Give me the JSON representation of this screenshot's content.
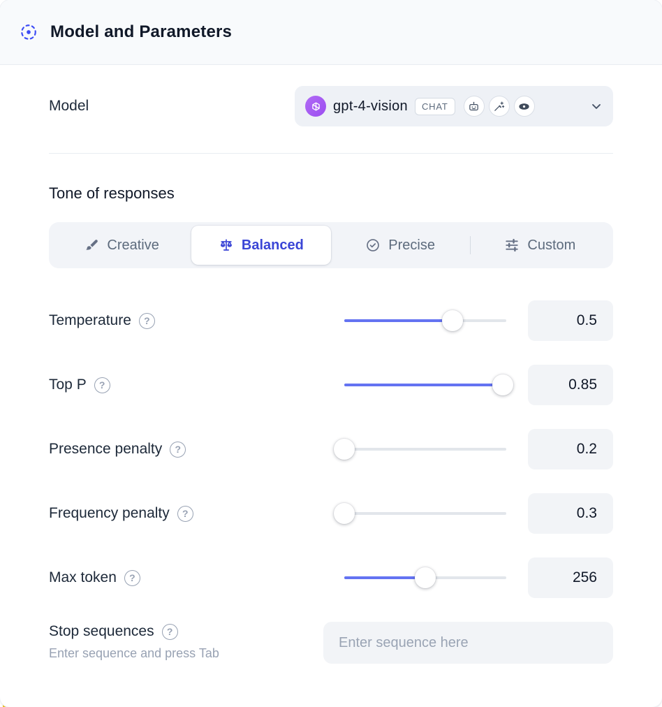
{
  "header": {
    "title": "Model and Parameters"
  },
  "model": {
    "label": "Model",
    "selected": "gpt-4-vision",
    "badge": "CHAT",
    "icon_badges": [
      "robot-icon",
      "magic-wand-icon",
      "vision-eye-icon"
    ]
  },
  "tone": {
    "heading": "Tone of responses",
    "options": [
      {
        "label": "Creative",
        "icon": "brush-icon",
        "selected": false
      },
      {
        "label": "Balanced",
        "icon": "balance-scale-icon",
        "selected": true
      },
      {
        "label": "Precise",
        "icon": "target-check-icon",
        "selected": false
      },
      {
        "label": "Custom",
        "icon": "sliders-icon",
        "selected": false
      }
    ]
  },
  "sliders": [
    {
      "label": "Temperature",
      "value": "0.5",
      "percent": 67
    },
    {
      "label": "Top P",
      "value": "0.85",
      "percent": 98
    },
    {
      "label": "Presence penalty",
      "value": "0.2",
      "percent": 0
    },
    {
      "label": "Frequency penalty",
      "value": "0.3",
      "percent": 0
    },
    {
      "label": "Max token",
      "value": "256",
      "percent": 50
    }
  ],
  "stop_sequences": {
    "label": "Stop sequences",
    "hint": "Enter sequence and press Tab",
    "placeholder": "Enter sequence here"
  },
  "icons": {
    "help_glyph": "?"
  },
  "colors": {
    "accent_blue": "#6473f2",
    "selected_text": "#3a45d6",
    "panel_header_bg": "#f8fafc",
    "control_bg": "#f2f4f7",
    "openai_purple": "#a85cf2",
    "text_dark": "#101828",
    "text_muted": "#98a2b3",
    "page_accent_yellow": "#f2c51d"
  }
}
